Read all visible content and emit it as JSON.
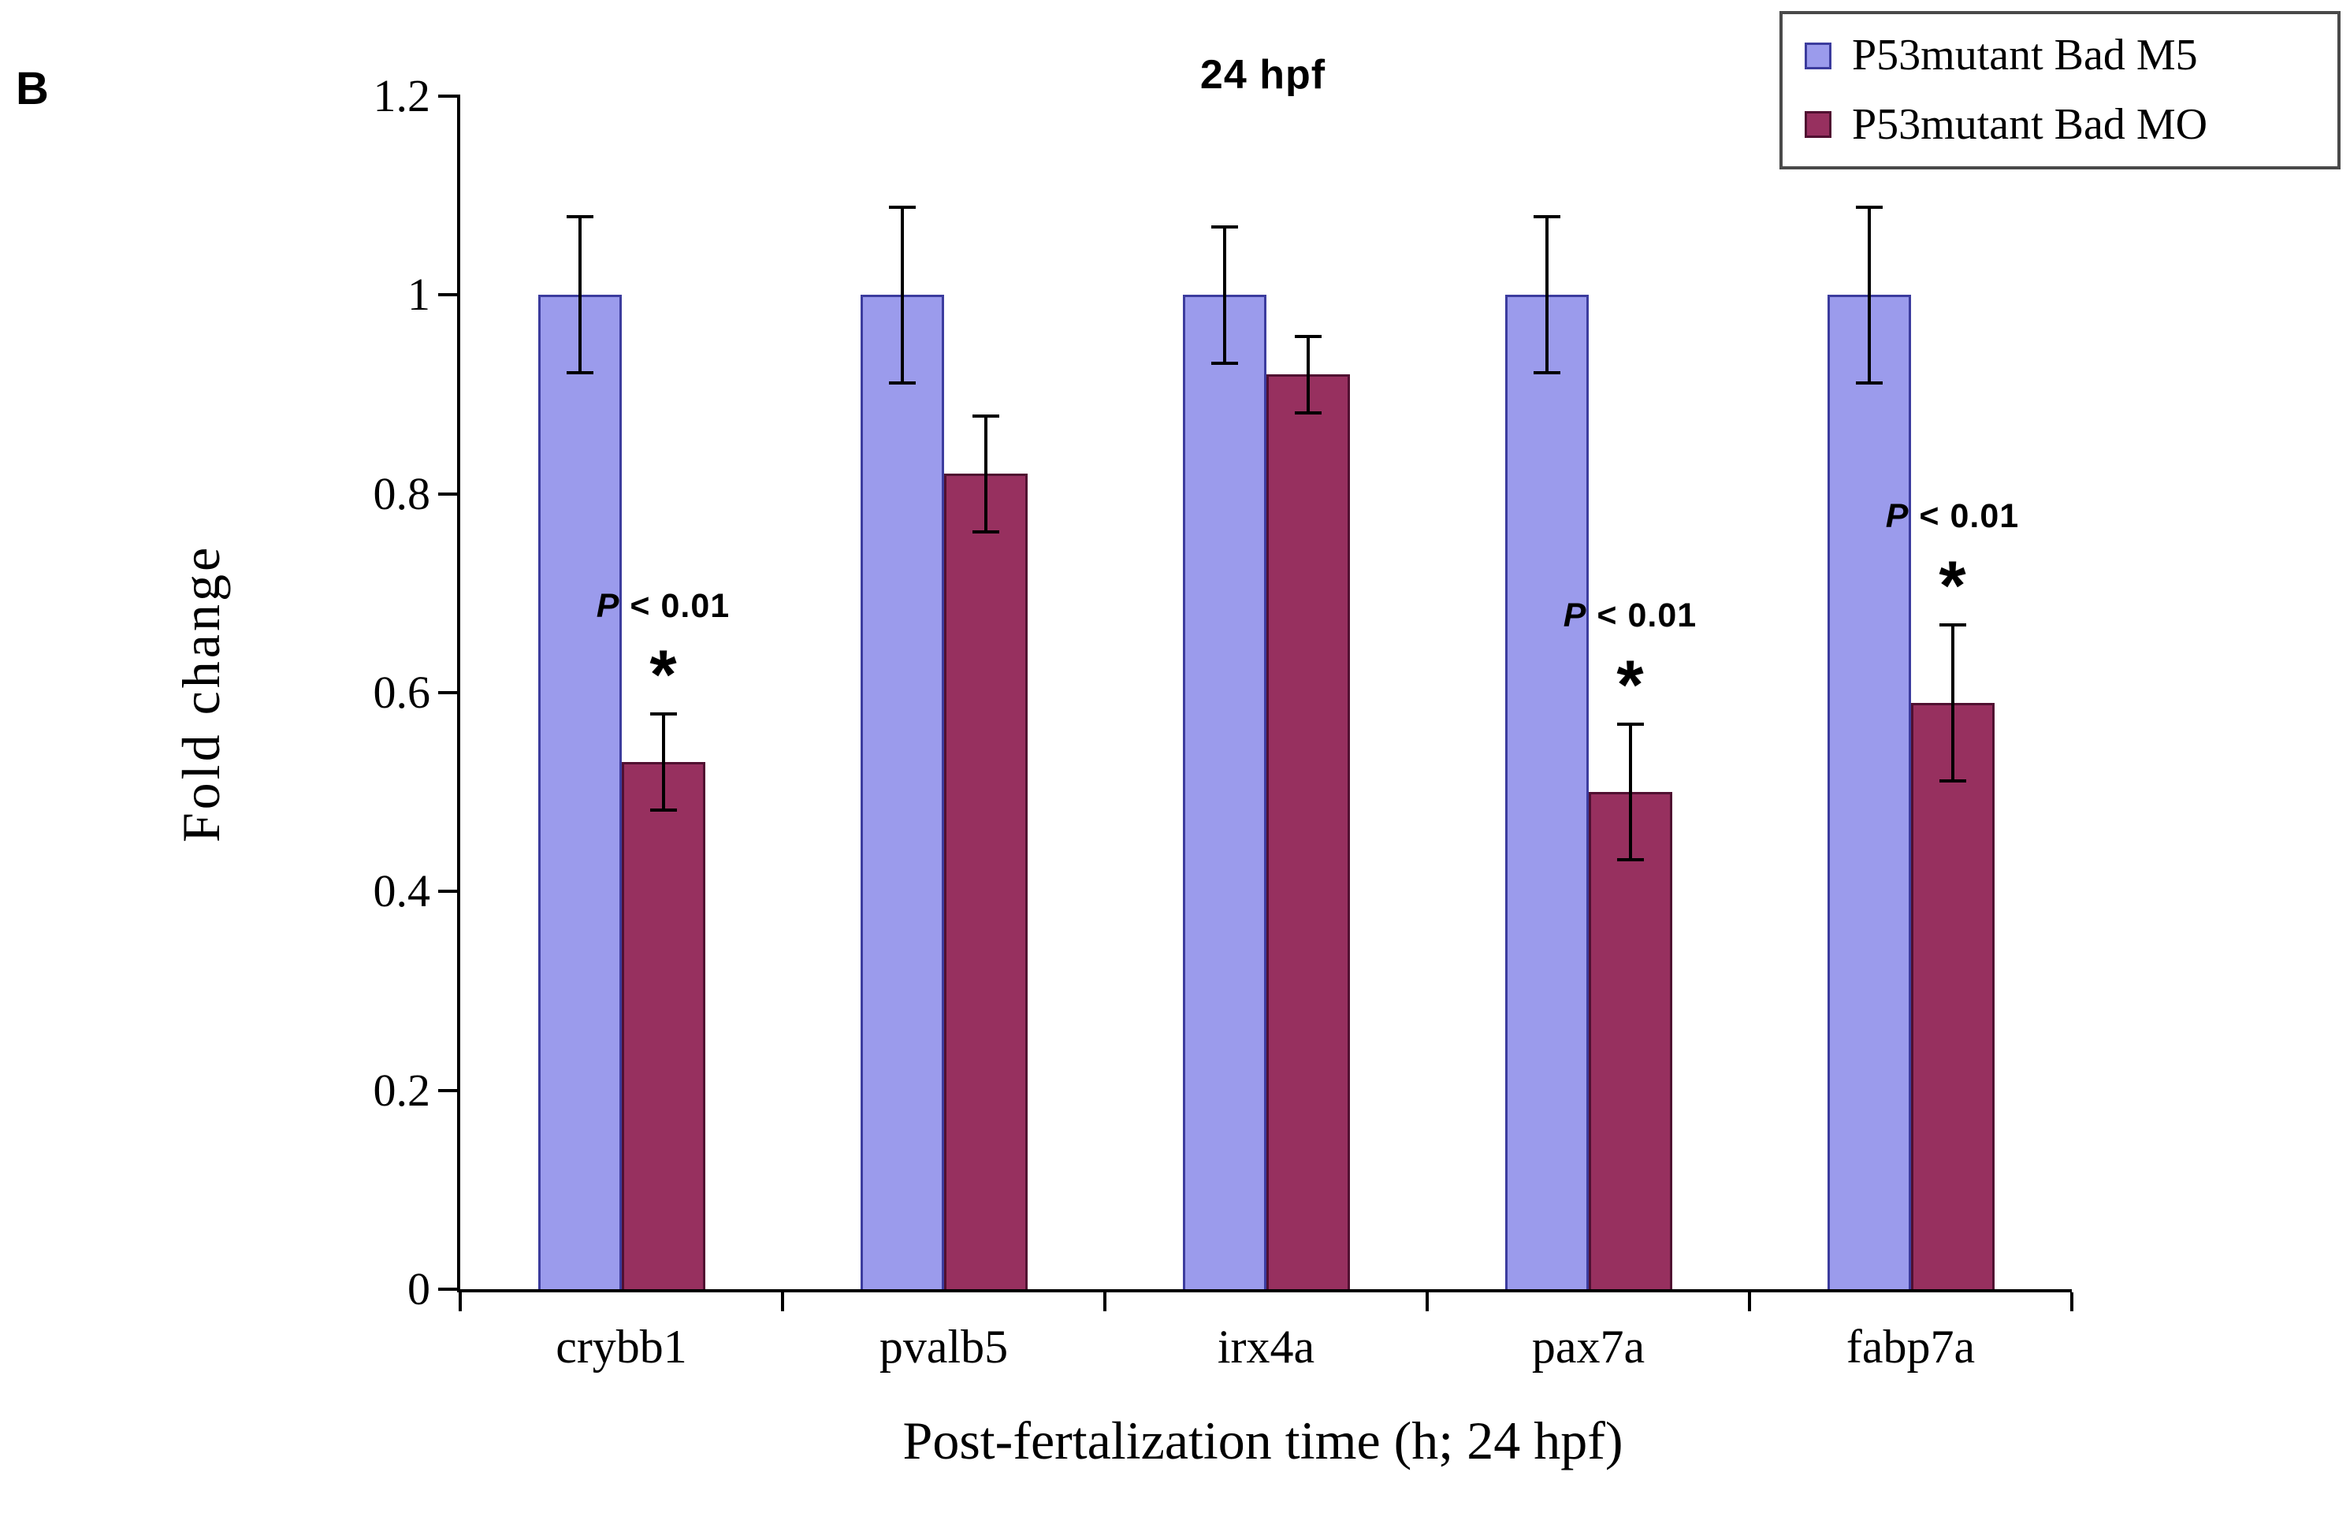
{
  "panel_label": "B",
  "chart_data": {
    "type": "bar",
    "title": "24 hpf",
    "xlabel": "Post-fertalization time (h; 24 hpf)",
    "ylabel": "Fold change",
    "ylim": [
      0,
      1.2
    ],
    "y_ticks": [
      "0",
      "0.2",
      "0.4",
      "0.6",
      "0.8",
      "1",
      "1.2"
    ],
    "categories": [
      "crybb1",
      "pvalb5",
      "irx4a",
      "pax7a",
      "fabp7a"
    ],
    "series": [
      {
        "name": "P53mutant Bad M5",
        "color": "#9b9bec",
        "border": "#3c3c9e",
        "values": [
          1.0,
          1.0,
          1.0,
          1.0,
          1.0
        ],
        "errors": [
          0.08,
          0.09,
          0.07,
          0.08,
          0.09
        ]
      },
      {
        "name": "P53mutant Bad MO",
        "color": "#97305f",
        "border": "#501031",
        "values": [
          0.53,
          0.82,
          0.92,
          0.5,
          0.59
        ],
        "errors": [
          0.05,
          0.06,
          0.04,
          0.07,
          0.08
        ]
      }
    ],
    "significance": {
      "label_p": "P",
      "label_rest": " < 0.01",
      "star": "*",
      "categories": [
        "crybb1",
        "pax7a",
        "fabp7a"
      ]
    },
    "legend_position": "top-right",
    "grid": false
  }
}
